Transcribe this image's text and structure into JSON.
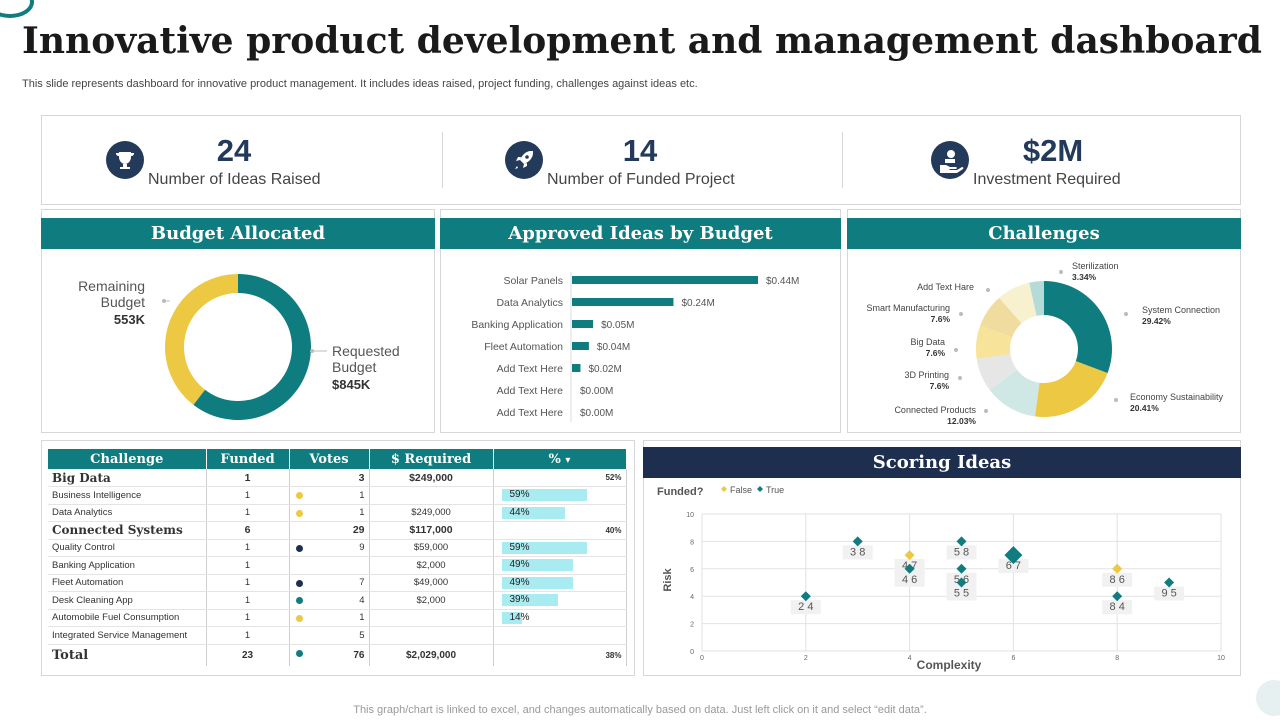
{
  "title": "Innovative product development and management dashboard",
  "subtitle": "This slide represents dashboard for innovative product management. It includes ideas raised, project funding, challenges against ideas etc.",
  "kpis": [
    {
      "value": "24",
      "label": "Number of Ideas Raised",
      "icon": "trophy-icon"
    },
    {
      "value": "14",
      "label": "Number of Funded Project",
      "icon": "rocket-icon"
    },
    {
      "value": "$2M",
      "label": "Investment  Required",
      "icon": "money-hand-icon"
    }
  ],
  "colors": {
    "teal": "#0f7c80",
    "navy": "#233a5a",
    "yellow": "#ecc843",
    "bar": "#a8ebf1"
  },
  "budget": {
    "title": "Budget Allocated",
    "remaining_label_1": "Remaining",
    "remaining_label_2": "Budget",
    "remaining_value": "553K",
    "requested_label_1": "Requested",
    "requested_label_2": "Budget",
    "requested_value": "$845K"
  },
  "approved": {
    "title": "Approved Ideas by Budget"
  },
  "challenges": {
    "title": "Challenges"
  },
  "scoring": {
    "title": "Scoring Ideas",
    "funded_label": "Funded?",
    "legend_false": "False",
    "legend_true": "True",
    "xlabel": "Complexity",
    "ylabel": "Risk"
  },
  "table": {
    "headers": [
      "Challenge",
      "Funded",
      "Votes",
      "$ Required",
      "%"
    ],
    "rows": [
      {
        "name": "Big Data",
        "funded": "1",
        "votes": "3",
        "required": "$249,000",
        "pct": "52%",
        "group": true,
        "dot": ""
      },
      {
        "name": "Business Intelligence",
        "funded": "1",
        "votes": "1",
        "required": "",
        "pct": "59%",
        "group": false,
        "dot": "yellow"
      },
      {
        "name": "Data Analytics",
        "funded": "1",
        "votes": "1",
        "required": "$249,000",
        "pct": "44%",
        "group": false,
        "dot": "yellow"
      },
      {
        "name": "Connected Systems",
        "funded": "6",
        "votes": "29",
        "required": "$117,000",
        "pct": "40%",
        "group": true,
        "dot": ""
      },
      {
        "name": "Quality Control",
        "funded": "1",
        "votes": "9",
        "required": "$59,000",
        "pct": "59%",
        "group": false,
        "dot": "navy"
      },
      {
        "name": "Banking Application",
        "funded": "1",
        "votes": "",
        "required": "$2,000",
        "pct": "49%",
        "group": false,
        "dot": ""
      },
      {
        "name": "Fleet Automation",
        "funded": "1",
        "votes": "7",
        "required": "$49,000",
        "pct": "49%",
        "group": false,
        "dot": "navy"
      },
      {
        "name": "Desk Cleaning App",
        "funded": "1",
        "votes": "4",
        "required": "$2,000",
        "pct": "39%",
        "group": false,
        "dot": "teal"
      },
      {
        "name": "Automobile Fuel Consumption",
        "funded": "1",
        "votes": "1",
        "required": "",
        "pct": "14%",
        "group": false,
        "dot": "yellow"
      },
      {
        "name": "Integrated Service Management",
        "funded": "1",
        "votes": "5",
        "required": "",
        "pct": "",
        "group": false,
        "dot": ""
      }
    ],
    "total": {
      "name": "Total",
      "funded": "23",
      "votes": "76",
      "required": "$2,029,000",
      "pct": "38%",
      "dot": "teal"
    }
  },
  "footer": "This graph/chart is linked to excel,  and changes automatically based on data. Just left click on it and select “edit data”.",
  "chart_data": [
    {
      "type": "pie",
      "title": "Budget Allocated",
      "labels": [
        "Remaining Budget",
        "Requested Budget"
      ],
      "values": [
        553,
        845
      ],
      "value_labels": [
        "553K",
        "$845K"
      ],
      "colors": [
        "#ecc843",
        "#0f7c80"
      ]
    },
    {
      "type": "bar",
      "title": "Approved Ideas by Budget",
      "orientation": "horizontal",
      "categories": [
        "Solar Panels",
        "Data Analytics",
        "Banking Application",
        "Fleet Automation",
        "Add Text Here",
        "Add Text Here",
        "Add Text Here"
      ],
      "values": [
        0.44,
        0.24,
        0.05,
        0.04,
        0.02,
        0.0,
        0.0
      ],
      "value_labels": [
        "$0.44M",
        "$0.24M",
        "$0.05M",
        "$0.04M",
        "$0.02M",
        "$0.00M",
        "$0.00M"
      ]
    },
    {
      "type": "pie",
      "title": "Challenges",
      "labels": [
        "System Connection",
        "Economy Sustainability",
        "Connected Products",
        "3D Printing",
        "Big Data",
        "Smart Manufacturing",
        "Add Text Hare",
        "Sterilization"
      ],
      "values": [
        29.42,
        20.41,
        12.03,
        7.6,
        7.6,
        7.6,
        7.6,
        3.34
      ],
      "value_labels": [
        "29.42%",
        "20.41%",
        "12.03%",
        "7.6%",
        "7.6%",
        "7.6%",
        "",
        "3.34%"
      ],
      "colors": [
        "#0f7c80",
        "#ecc843",
        "#cfe8e6",
        "#e6e6e6",
        "#f7e39a",
        "#f1dca0",
        "#f8f1d0",
        "#b5dbd8"
      ]
    },
    {
      "type": "scatter",
      "title": "Scoring Ideas",
      "xlabel": "Complexity",
      "ylabel": "Risk",
      "xlim": [
        0,
        10
      ],
      "ylim": [
        0,
        10
      ],
      "xticks": [
        0,
        2,
        4,
        6,
        8,
        10
      ],
      "yticks": [
        0,
        2,
        4,
        6,
        8,
        10
      ],
      "series": [
        {
          "name": "False",
          "color": "#ecc843",
          "points": [
            [
              4,
              6
            ],
            [
              8,
              6
            ],
            [
              4,
              7
            ]
          ]
        },
        {
          "name": "True",
          "color": "#0f7c80",
          "points": [
            [
              2,
              4
            ],
            [
              3,
              8
            ],
            [
              4,
              6
            ],
            [
              5,
              8
            ],
            [
              5,
              6
            ],
            [
              5,
              5
            ],
            [
              6,
              7
            ],
            [
              8,
              4
            ],
            [
              9,
              5
            ]
          ]
        }
      ],
      "point_labels": [
        {
          "x": 2,
          "y": 4,
          "text": "2  4"
        },
        {
          "x": 3,
          "y": 8,
          "text": "3  8"
        },
        {
          "x": 4,
          "y": 6,
          "text": "4 6"
        },
        {
          "x": 4,
          "y": 7,
          "text": "4 7"
        },
        {
          "x": 5,
          "y": 8,
          "text": "5  8"
        },
        {
          "x": 5,
          "y": 6,
          "text": "5  6"
        },
        {
          "x": 5,
          "y": 5,
          "text": "5  5"
        },
        {
          "x": 6,
          "y": 7,
          "text": "6  7"
        },
        {
          "x": 8,
          "y": 6,
          "text": "8  6"
        },
        {
          "x": 8,
          "y": 4,
          "text": "8  4"
        },
        {
          "x": 9,
          "y": 5,
          "text": "9  5"
        }
      ]
    }
  ]
}
